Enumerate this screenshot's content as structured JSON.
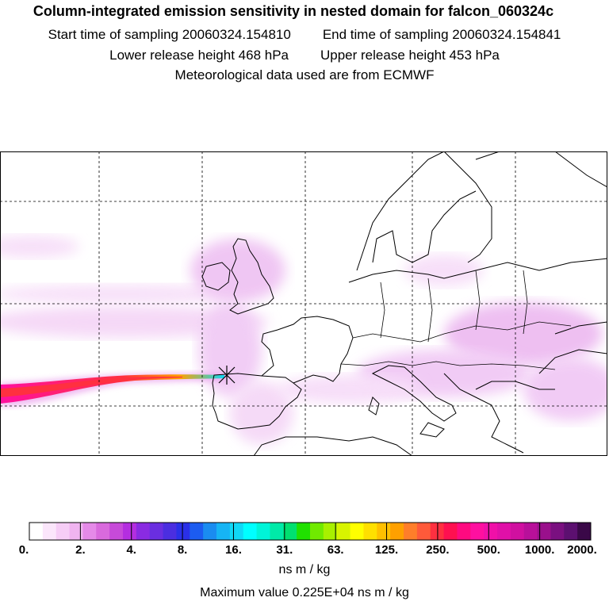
{
  "header": {
    "title": "Column-integrated emission sensitivity in nested domain for falcon_060324c",
    "start_time": "Start time of sampling 20060324.154810",
    "end_time": "End time of sampling 20060324.154841",
    "lower_release": "Lower release height  468 hPa",
    "upper_release": "Upper release height  453 hPa",
    "met_data": "Meteorological data used are from ECMWF"
  },
  "colorbar": {
    "ticks": [
      "0.",
      "2.",
      "4.",
      "8.",
      "16.",
      "31.",
      "63.",
      "125.",
      "250.",
      "500.",
      "1000.",
      "2000."
    ],
    "colors": [
      "#ffffff",
      "#fbe6fb",
      "#f6cdf6",
      "#f0b4f0",
      "#e58ae8",
      "#d96add",
      "#c74ad9",
      "#b42ee0",
      "#8a2be2",
      "#6a2ee0",
      "#4b2ee0",
      "#2a30e8",
      "#1c5cf0",
      "#1a8cf0",
      "#16b4f4",
      "#10d8f6",
      "#00ffff",
      "#00f4d8",
      "#00eaa8",
      "#00e070",
      "#20e000",
      "#70ea00",
      "#a8f000",
      "#d8f400",
      "#ffff00",
      "#ffe000",
      "#ffc000",
      "#ffa000",
      "#ff7e2a",
      "#ff5a3a",
      "#ff3040",
      "#ff1050",
      "#ff0a80",
      "#ff10a0",
      "#f010a8",
      "#e010a8",
      "#d010a0",
      "#b8109a",
      "#9a108c",
      "#7a1080",
      "#5c1070",
      "#3a0848"
    ],
    "units": "ns m / kg",
    "max_value": "Maximum value  0.225E+04 ns m / kg"
  }
}
